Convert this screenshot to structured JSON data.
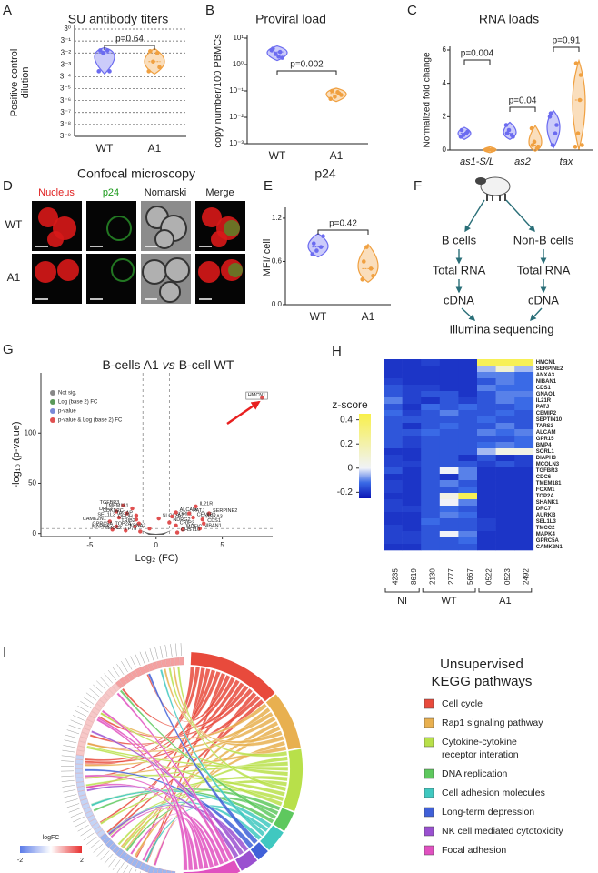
{
  "figure": {
    "A": {
      "letter": "A",
      "title": "SU antibody titers",
      "y_label": [
        "Positive control",
        "dilution"
      ],
      "log_scale": true,
      "grid": true,
      "ylim": [
        5.08e-05,
        1
      ],
      "yticks": [
        {
          "value": 1,
          "label": "3⁰"
        },
        {
          "value": 0.3333,
          "label": "3⁻¹"
        },
        {
          "value": 0.1111,
          "label": "3⁻²"
        },
        {
          "value": 0.03704,
          "label": "3⁻³"
        },
        {
          "value": 0.01235,
          "label": "3⁻⁴"
        },
        {
          "value": 0.004115,
          "label": "3⁻⁵"
        },
        {
          "value": 0.001372,
          "label": "3⁻⁶"
        },
        {
          "value": 0.000457,
          "label": "3⁻⁷"
        },
        {
          "value": 0.0001524,
          "label": "3⁻⁸"
        },
        {
          "value": 5.08e-05,
          "label": "3⁻⁹"
        }
      ],
      "groups": [
        {
          "name": "WT",
          "color": "#6b6bf0",
          "values": [
            0.14,
            0.14,
            0.1111,
            0.0206,
            0.0206
          ]
        },
        {
          "name": "A1",
          "color": "#f0a040",
          "values": [
            0.13,
            0.11,
            0.05,
            0.03,
            0.0206
          ]
        }
      ],
      "p_value": "p=0.64"
    },
    "B": {
      "letter": "B",
      "title": "Proviral load",
      "y_label": "copy number/100 PBMCs",
      "log_scale": true,
      "ylim": [
        0.001,
        10
      ],
      "yticks": [
        {
          "value": 10,
          "label": "10¹"
        },
        {
          "value": 1,
          "label": "10⁰"
        },
        {
          "value": 0.1,
          "label": "10⁻¹"
        },
        {
          "value": 0.01,
          "label": "10⁻²"
        },
        {
          "value": 0.001,
          "label": "10⁻³"
        }
      ],
      "groups": [
        {
          "name": "WT",
          "color": "#6b6bf0",
          "values": [
            4,
            3,
            2.5,
            1.8,
            3.5,
            2
          ]
        },
        {
          "name": "A1",
          "color": "#f0a040",
          "values": [
            0.1,
            0.08,
            0.06,
            0.07,
            0.05,
            0.09
          ]
        }
      ],
      "p_value": "p=0.002"
    },
    "C": {
      "letter": "C",
      "title": "RNA loads",
      "y_label": "Normalized fold change",
      "ylim": [
        0,
        6
      ],
      "yticks": [
        0,
        2,
        4,
        6
      ],
      "genes": [
        {
          "name": "as1-S/L",
          "p_value": "p=0.004",
          "groups": [
            {
              "color": "#6b6bf0",
              "values": [
                1.2,
                1.0,
                0.9,
                1.1,
                0.8
              ]
            },
            {
              "color": "#f0a040",
              "values": [
                0.02,
                0.01,
                0.03,
                0.02,
                0.01
              ]
            }
          ]
        },
        {
          "name": "as2",
          "p_value": "p=0.04",
          "groups": [
            {
              "color": "#6b6bf0",
              "values": [
                1.0,
                0.9,
                1.2,
                0.8,
                1.5
              ]
            },
            {
              "color": "#f0a040",
              "values": [
                0.3,
                0.1,
                0.5,
                0.2,
                1.3
              ]
            }
          ]
        },
        {
          "name": "tax",
          "p_value": "p=0.91",
          "groups": [
            {
              "color": "#6b6bf0",
              "values": [
                2.2,
                1.0,
                0.3,
                1.5,
                2.0
              ]
            },
            {
              "color": "#f0a040",
              "values": [
                5.2,
                4.5,
                1.0,
                0.3,
                0.2,
                3.0
              ]
            }
          ]
        }
      ]
    },
    "D": {
      "letter": "D",
      "title": "Confocal microscopy",
      "channels": [
        {
          "name": "Nucleus",
          "color": "#e02020"
        },
        {
          "name": "p24",
          "color": "#1a9a1a"
        },
        {
          "name": "Nomarski",
          "color": "#222222"
        },
        {
          "name": "Merge",
          "color": "#222222"
        }
      ],
      "rows": [
        "WT",
        "A1"
      ]
    },
    "E": {
      "letter": "E",
      "title": "p24",
      "y_label": "MFI/ cell",
      "ylim": [
        0,
        1.3
      ],
      "yticks": [
        {
          "value": 0,
          "label": "0.0"
        },
        0.6,
        1.2
      ],
      "groups": [
        {
          "name": "WT",
          "color": "#6b6bf0",
          "values": [
            0.85,
            0.8,
            0.75,
            0.95,
            0.7
          ]
        },
        {
          "name": "A1",
          "color": "#f0a040",
          "values": [
            0.6,
            0.5,
            0.8,
            0.4,
            0.35
          ]
        }
      ],
      "p_value": "p=0.42"
    },
    "F": {
      "letter": "F",
      "left": [
        "B cells",
        "Total RNA",
        "cDNA"
      ],
      "right": [
        "Non-B cells",
        "Total RNA",
        "cDNA"
      ],
      "final": "Illumina sequencing"
    },
    "G": {
      "letter": "G",
      "title_parts": [
        "B-cells A1",
        "vs",
        "B-cell WT"
      ],
      "x_label": "Log₂ (FC)",
      "y_label": "-log₁₀ (p-value)",
      "xlim": [
        -8.7,
        8.8
      ],
      "ylim": [
        -3,
        160
      ],
      "xticks": [
        -5,
        0,
        5
      ],
      "yticks": [
        0,
        50,
        100
      ],
      "x_thresholds": [
        -1,
        1
      ],
      "y_threshold": 5,
      "legend": [
        {
          "name": "Not sig.",
          "color": "#888888"
        },
        {
          "name": "Log (base 2) FC",
          "color": "#5a9a5a"
        },
        {
          "name": "p-value",
          "color": "#7a8ad8"
        },
        {
          "name": "p-value & Log (base 2) FC",
          "color": "#e05050"
        }
      ],
      "genes": [
        {
          "gene": "HMCN1",
          "x": 8,
          "y": 135
        },
        {
          "gene": "TGFBR3",
          "x": -2.5,
          "y": 28
        },
        {
          "gene": "TMEM181",
          "x": -1.8,
          "y": 25
        },
        {
          "gene": "DRC7",
          "x": -3,
          "y": 22
        },
        {
          "gene": "CDKN2C",
          "x": -2.2,
          "y": 20
        },
        {
          "gene": "TAGAP",
          "x": -1.5,
          "y": 18
        },
        {
          "gene": "SEL1L3",
          "x": -2.8,
          "y": 16
        },
        {
          "gene": "DHDH",
          "x": -1.5,
          "y": 14
        },
        {
          "gene": "CAMK2N1",
          "x": -3.5,
          "y": 12
        },
        {
          "gene": "TRIB2",
          "x": -1.3,
          "y": 10
        },
        {
          "gene": "GPRC5A",
          "x": -3,
          "y": 7
        },
        {
          "gene": "TOP2A",
          "x": -1.6,
          "y": 7
        },
        {
          "gene": "MAPK4",
          "x": -3.3,
          "y": 4
        },
        {
          "gene": "TMCC2",
          "x": -2.3,
          "y": 3
        },
        {
          "gene": "TP73",
          "x": -1.2,
          "y": 2
        },
        {
          "gene": "KPNA2",
          "x": -0.5,
          "y": 5
        },
        {
          "gene": "SLC12A7",
          "x": 0.2,
          "y": 15
        },
        {
          "gene": "SORL1",
          "x": 1.2,
          "y": 17
        },
        {
          "gene": "ALCAM",
          "x": 1.5,
          "y": 21
        },
        {
          "gene": "PATJ",
          "x": 2.5,
          "y": 20
        },
        {
          "gene": "IL21R",
          "x": 3,
          "y": 27
        },
        {
          "gene": "SERPINE2",
          "x": 4,
          "y": 20
        },
        {
          "gene": "CEMIP2",
          "x": 2.8,
          "y": 16
        },
        {
          "gene": "ANXA3",
          "x": 3.5,
          "y": 14
        },
        {
          "gene": "NDRG2",
          "x": 1,
          "y": 11
        },
        {
          "gene": "CRIP3",
          "x": 1.5,
          "y": 8
        },
        {
          "gene": "MDFIC",
          "x": 2,
          "y": 4
        },
        {
          "gene": "NIBAN1",
          "x": 3.3,
          "y": 5
        },
        {
          "gene": "CDS1",
          "x": 3.6,
          "y": 10
        },
        {
          "gene": "CHST10",
          "x": 1.6,
          "y": 1
        }
      ]
    },
    "H": {
      "letter": "H",
      "colorbar_label": "z-score",
      "clim": [
        -0.25,
        0.45
      ],
      "colorbar_ticks": [
        0.4,
        0.2,
        0,
        -0.2
      ],
      "colorscale": [
        [
          -0.25,
          "#0a14b4"
        ],
        [
          -0.12,
          "#3a6ae6"
        ],
        [
          0,
          "#f0f2f8"
        ],
        [
          0.45,
          "#f8f04a"
        ]
      ],
      "groups": [
        {
          "name": "NI",
          "samples": [
            "4235",
            "8619"
          ]
        },
        {
          "name": "WT",
          "samples": [
            "2130",
            "2777",
            "5667"
          ]
        },
        {
          "name": "A1",
          "samples": [
            "0522",
            "0523",
            "2492"
          ]
        }
      ],
      "rows": [
        {
          "gene": "HMCN1",
          "values": [
            -0.2,
            -0.2,
            -0.18,
            -0.2,
            -0.2,
            0.42,
            0.42,
            0.42
          ]
        },
        {
          "gene": "SERPINE2",
          "values": [
            -0.2,
            -0.2,
            -0.2,
            -0.2,
            -0.2,
            -0.05,
            0.1,
            -0.05
          ]
        },
        {
          "gene": "ANXA3",
          "values": [
            -0.2,
            -0.2,
            -0.2,
            -0.2,
            -0.2,
            -0.1,
            -0.1,
            -0.12
          ]
        },
        {
          "gene": "NIBAN1",
          "values": [
            -0.18,
            -0.2,
            -0.2,
            -0.2,
            -0.2,
            -0.15,
            -0.1,
            -0.12
          ]
        },
        {
          "gene": "CDS1",
          "values": [
            -0.15,
            -0.18,
            -0.18,
            -0.2,
            -0.2,
            -0.1,
            -0.12,
            -0.12
          ]
        },
        {
          "gene": "GNAO1",
          "values": [
            -0.15,
            -0.18,
            -0.15,
            -0.15,
            -0.2,
            -0.15,
            -0.1,
            -0.1
          ]
        },
        {
          "gene": "IL21R",
          "values": [
            -0.1,
            -0.18,
            -0.2,
            -0.15,
            -0.18,
            -0.15,
            -0.1,
            -0.12
          ]
        },
        {
          "gene": "PATJ",
          "values": [
            -0.15,
            -0.2,
            -0.12,
            -0.15,
            -0.12,
            -0.15,
            -0.15,
            -0.12
          ]
        },
        {
          "gene": "CEMIP2",
          "values": [
            -0.12,
            -0.18,
            -0.15,
            -0.1,
            -0.15,
            -0.15,
            -0.12,
            -0.15
          ]
        },
        {
          "gene": "SEPTIN10",
          "values": [
            -0.15,
            -0.15,
            -0.15,
            -0.15,
            -0.15,
            -0.12,
            -0.15,
            -0.15
          ]
        },
        {
          "gene": "TARS3",
          "values": [
            -0.15,
            -0.2,
            -0.15,
            -0.12,
            -0.15,
            -0.15,
            -0.1,
            -0.15
          ]
        },
        {
          "gene": "ALCAM",
          "values": [
            -0.15,
            -0.15,
            -0.12,
            -0.15,
            -0.15,
            -0.1,
            -0.12,
            -0.1
          ]
        },
        {
          "gene": "GPR15",
          "values": [
            -0.15,
            -0.18,
            -0.15,
            -0.15,
            -0.15,
            -0.15,
            -0.15,
            -0.12
          ]
        },
        {
          "gene": "BMP4",
          "values": [
            -0.15,
            -0.18,
            -0.15,
            -0.15,
            -0.15,
            -0.12,
            -0.1,
            -0.12
          ]
        },
        {
          "gene": "SORL1",
          "values": [
            -0.2,
            -0.2,
            -0.15,
            -0.15,
            -0.15,
            -0.05,
            0.05,
            0.05
          ]
        },
        {
          "gene": "DIAPH3",
          "values": [
            -0.18,
            -0.2,
            -0.15,
            -0.15,
            -0.2,
            -0.15,
            -0.2,
            -0.18
          ]
        },
        {
          "gene": "MCOLN3",
          "values": [
            -0.18,
            -0.18,
            -0.15,
            -0.15,
            -0.15,
            -0.18,
            -0.15,
            -0.18
          ]
        },
        {
          "gene": "TGFBR3",
          "values": [
            -0.15,
            -0.2,
            -0.15,
            0.0,
            -0.1,
            -0.2,
            -0.2,
            -0.2
          ]
        },
        {
          "gene": "CDC6",
          "values": [
            -0.2,
            -0.2,
            -0.15,
            -0.2,
            -0.1,
            -0.2,
            -0.2,
            -0.2
          ]
        },
        {
          "gene": "TMEM181",
          "values": [
            -0.18,
            -0.2,
            -0.15,
            -0.1,
            -0.15,
            -0.2,
            -0.2,
            -0.2
          ]
        },
        {
          "gene": "FOXM1",
          "values": [
            -0.18,
            -0.2,
            -0.15,
            -0.15,
            -0.12,
            -0.2,
            -0.2,
            -0.2
          ]
        },
        {
          "gene": "TOP2A",
          "values": [
            -0.2,
            -0.2,
            -0.15,
            0.05,
            0.42,
            -0.2,
            -0.2,
            -0.2
          ]
        },
        {
          "gene": "SHANK1",
          "values": [
            -0.18,
            -0.2,
            -0.15,
            0.0,
            -0.1,
            -0.2,
            -0.2,
            -0.2
          ]
        },
        {
          "gene": "DRC7",
          "values": [
            -0.18,
            -0.18,
            -0.15,
            -0.12,
            -0.15,
            -0.2,
            -0.2,
            -0.2
          ]
        },
        {
          "gene": "AURKB",
          "values": [
            -0.2,
            -0.2,
            -0.15,
            -0.1,
            -0.12,
            -0.2,
            -0.2,
            -0.2
          ]
        },
        {
          "gene": "SEL1L3",
          "values": [
            -0.2,
            -0.2,
            -0.12,
            -0.15,
            -0.15,
            -0.18,
            -0.2,
            -0.2
          ]
        },
        {
          "gene": "TMCC2",
          "values": [
            -0.18,
            -0.2,
            -0.15,
            -0.15,
            -0.15,
            -0.18,
            -0.2,
            -0.2
          ]
        },
        {
          "gene": "MAPK4",
          "values": [
            -0.18,
            -0.18,
            -0.15,
            0.0,
            -0.1,
            -0.2,
            -0.2,
            -0.2
          ]
        },
        {
          "gene": "GPRC5A",
          "values": [
            -0.18,
            -0.18,
            -0.15,
            -0.15,
            -0.12,
            -0.2,
            -0.2,
            -0.2
          ]
        },
        {
          "gene": "CAMK2N1",
          "values": [
            -0.2,
            -0.2,
            -0.15,
            -0.15,
            -0.15,
            -0.2,
            -0.2,
            -0.2
          ]
        }
      ]
    },
    "I": {
      "letter": "I",
      "title_lines": [
        "Unsupervised",
        "KEGG pathways"
      ],
      "logfc_label": "logFC",
      "logfc_ticks": [
        -2,
        2
      ],
      "pathways": [
        {
          "label_lines": [
            "Cell cycle"
          ],
          "color": "#e84a3c"
        },
        {
          "label_lines": [
            "Rap1 signaling pathway"
          ],
          "color": "#e8b050"
        },
        {
          "label_lines": [
            "Cytokine-cytokine",
            "receptor interation"
          ],
          "color": "#b8e04a"
        },
        {
          "label_lines": [
            "DNA replication"
          ],
          "color": "#5ec85e"
        },
        {
          "label_lines": [
            "Cell adhesion molecules"
          ],
          "color": "#40c8c0"
        },
        {
          "label_lines": [
            "Long-term depression"
          ],
          "color": "#4060d8"
        },
        {
          "label_lines": [
            "NK cell mediated cytotoxicity"
          ],
          "color": "#9a50d0"
        },
        {
          "label_lines": [
            "Focal adhesion"
          ],
          "color": "#e050c0"
        }
      ]
    }
  }
}
